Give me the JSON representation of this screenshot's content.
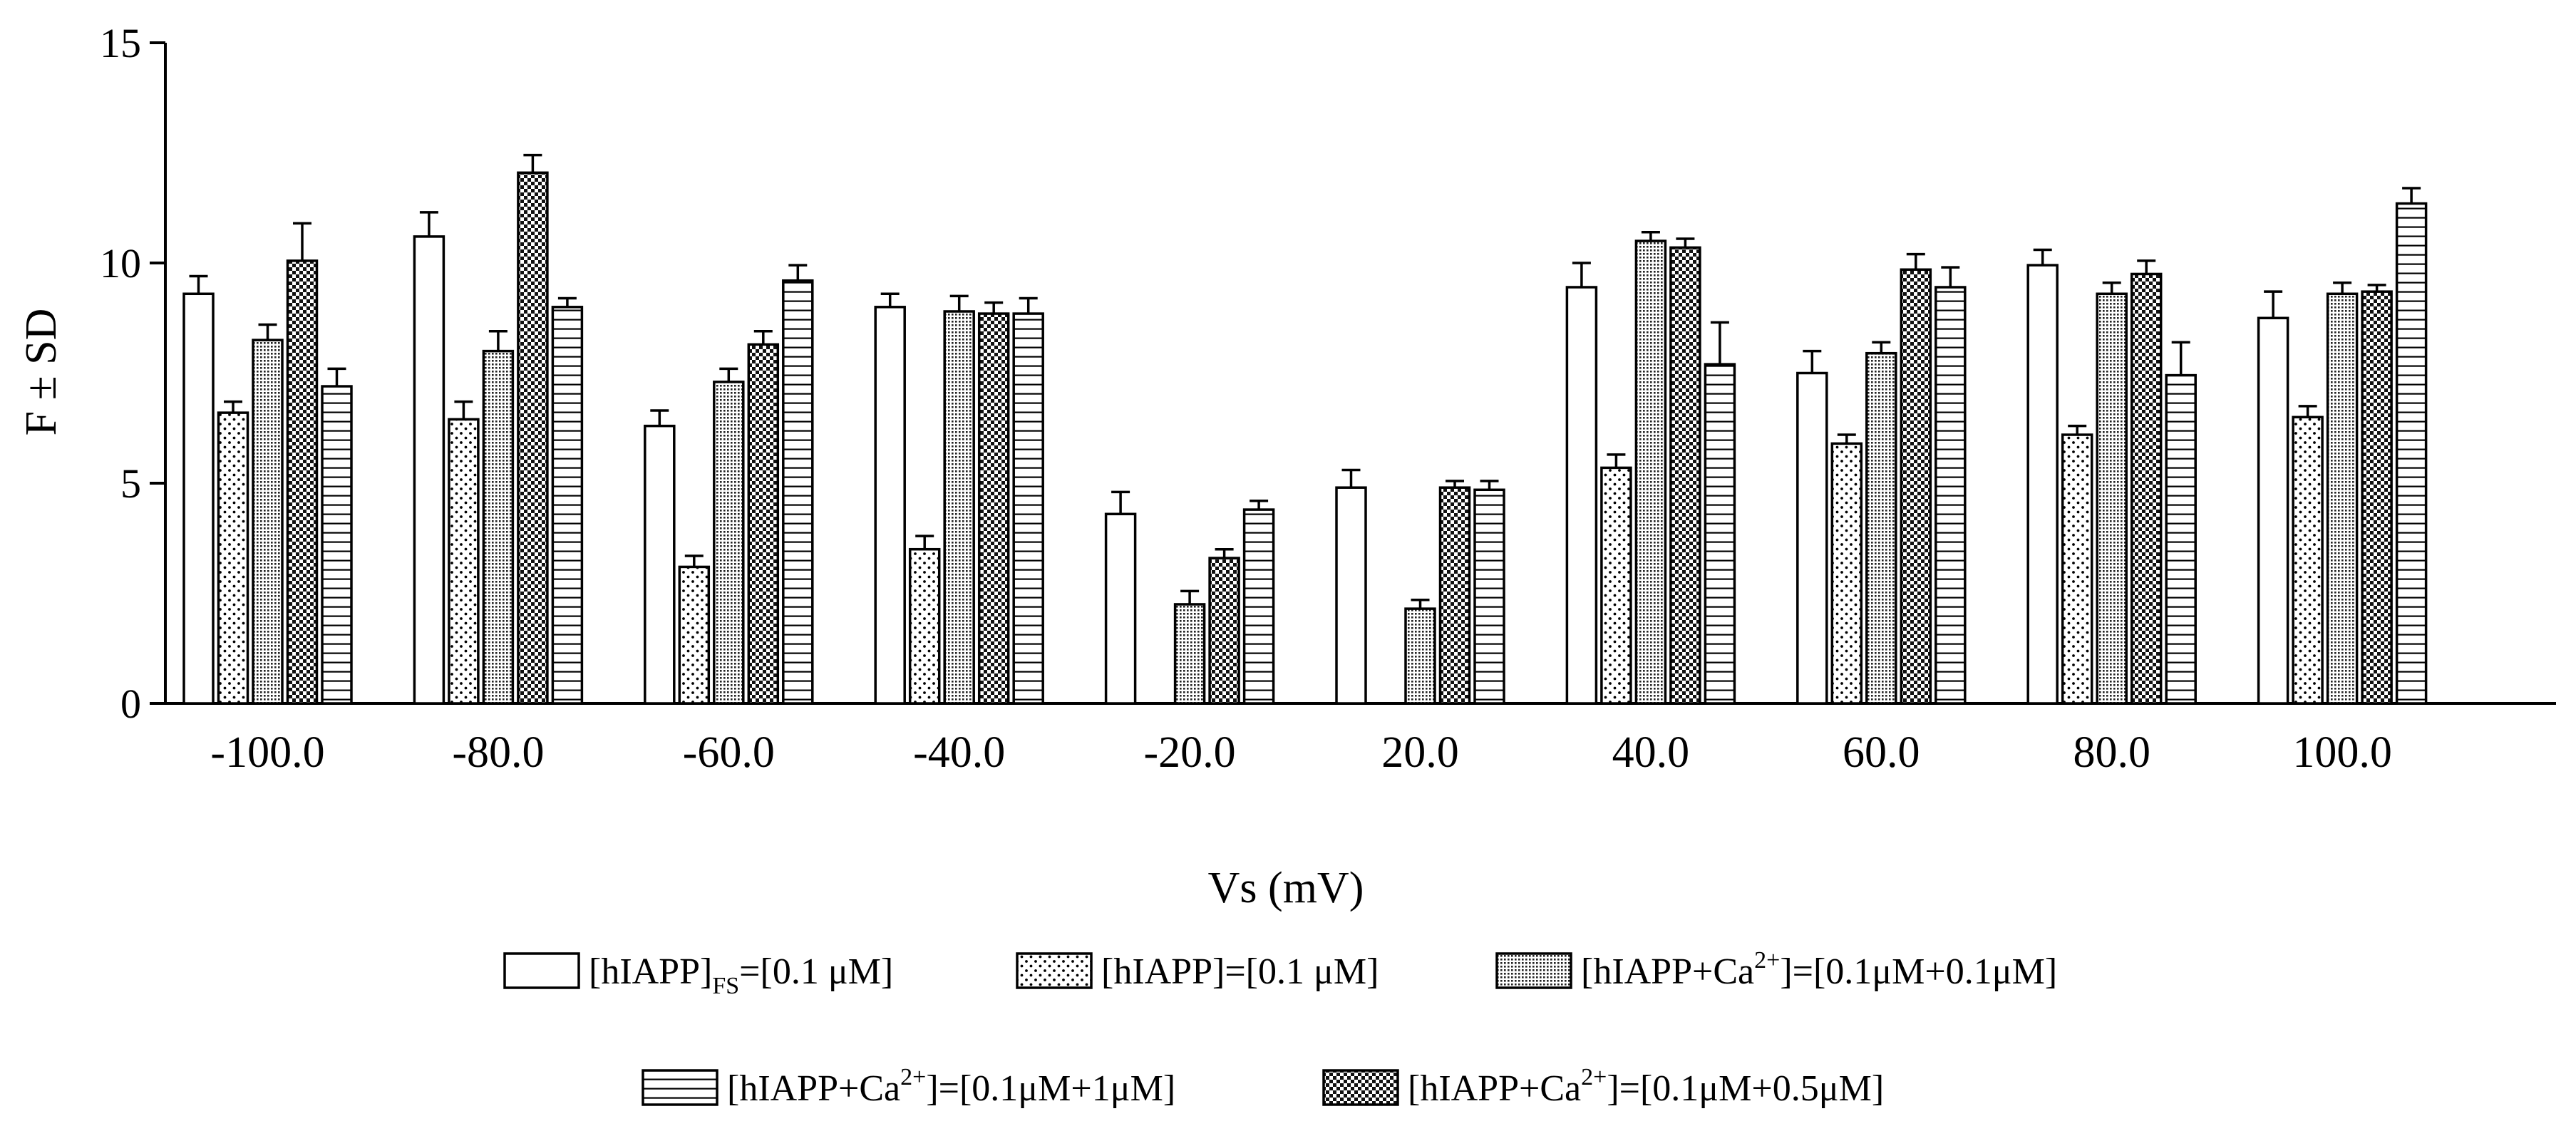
{
  "chart_data": {
    "type": "bar",
    "ylabel": "F ± SD",
    "xlabel": "Vs (mV)",
    "ylim": [
      0,
      15
    ],
    "yticks": [
      "0",
      "5",
      "10",
      "15"
    ],
    "categories": [
      "-100.0",
      "-80.0",
      "-60.0",
      "-40.0",
      "-20.0",
      "20.0",
      "40.0",
      "60.0",
      "80.0",
      "100.0"
    ],
    "series": [
      {
        "key": "fs",
        "pattern": "blank",
        "legend": {
          "base": "[hIAPP]",
          "sub": "FS",
          "tail": "=[0.1 μM]"
        },
        "values": [
          9.3,
          10.6,
          6.3,
          9.0,
          4.3,
          4.9,
          9.45,
          7.5,
          9.95,
          8.75
        ],
        "errors": [
          0.4,
          0.55,
          0.35,
          0.3,
          0.5,
          0.4,
          0.55,
          0.5,
          0.35,
          0.6
        ]
      },
      {
        "key": "h",
        "pattern": "dots",
        "legend": {
          "base": "[hIAPP]=[0.1 μM]"
        },
        "values": [
          6.6,
          6.45,
          3.1,
          3.5,
          0,
          0,
          5.35,
          5.9,
          6.1,
          6.5
        ],
        "errors": [
          0.25,
          0.4,
          0.25,
          0.3,
          0,
          0,
          0.3,
          0.2,
          0.2,
          0.25
        ]
      },
      {
        "key": "ca01",
        "pattern": "fine",
        "legend": {
          "base": "[hIAPP+Ca",
          "sup": "2+",
          "tail": "]=[0.1μM+0.1μM]"
        },
        "values": [
          8.25,
          8.0,
          7.3,
          8.9,
          2.25,
          2.15,
          10.5,
          7.95,
          9.3,
          9.3
        ],
        "errors": [
          0.35,
          0.45,
          0.3,
          0.35,
          0.3,
          0.2,
          0.2,
          0.25,
          0.25,
          0.25
        ]
      },
      {
        "key": "ca05",
        "pattern": "check",
        "legend": {
          "base": "[hIAPP+Ca",
          "sup": "2+",
          "tail": "]=[0.1μM+0.5μM]"
        },
        "values": [
          10.05,
          12.05,
          8.15,
          8.85,
          3.3,
          4.9,
          10.35,
          9.85,
          9.75,
          9.35
        ],
        "errors": [
          0.85,
          0.4,
          0.3,
          0.25,
          0.2,
          0.15,
          0.2,
          0.35,
          0.3,
          0.15
        ]
      },
      {
        "key": "ca1",
        "pattern": "hlines",
        "legend": {
          "base": "[hIAPP+Ca",
          "sup": "2+",
          "tail": "]=[0.1μM+1μM]"
        },
        "values": [
          7.2,
          9.0,
          9.6,
          8.85,
          4.4,
          4.85,
          7.7,
          9.45,
          7.45,
          11.35
        ],
        "errors": [
          0.4,
          0.2,
          0.35,
          0.35,
          0.2,
          0.2,
          0.95,
          0.45,
          0.75,
          0.35
        ]
      }
    ],
    "legend_rows": [
      [
        "fs",
        "h",
        "ca01"
      ],
      [
        "ca1",
        "ca05"
      ]
    ]
  }
}
